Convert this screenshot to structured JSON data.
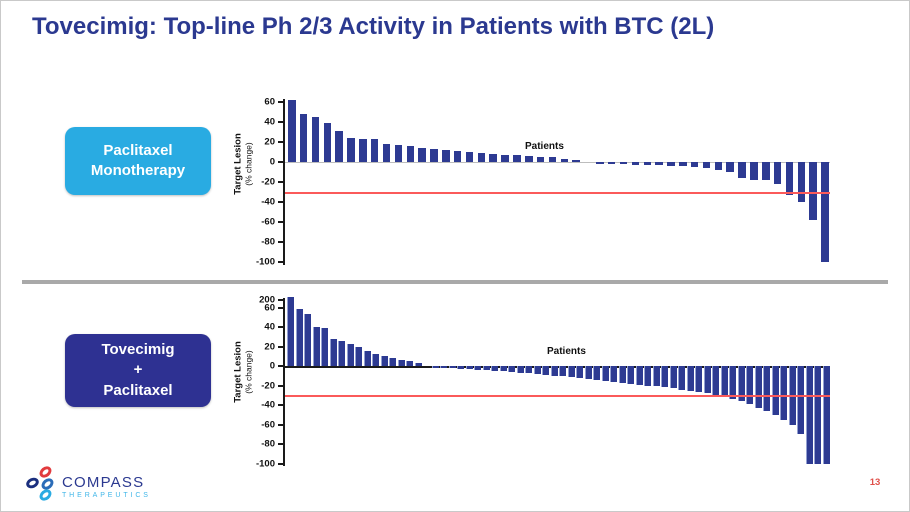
{
  "slide": {
    "title": "Tovecimig: Top-line Ph 2/3 Activity in Patients with BTC (2L)",
    "page_number": "13"
  },
  "arms": [
    {
      "label_lines": [
        "Paclitaxel",
        "Monotherapy"
      ],
      "box_color": "#29abe2"
    },
    {
      "label_lines": [
        "Tovecimig",
        "+",
        "Paclitaxel"
      ],
      "box_color": "#2e3192"
    }
  ],
  "logo": {
    "name": "COMPASS",
    "subname": "THERAPEUTICS"
  },
  "colors": {
    "title_blue": "#2b3990",
    "bar_navy": "#2d3a92",
    "reference_red": "#fb5a5a",
    "divider_gray": "#a9a9a9"
  },
  "chart_data": [
    {
      "type": "bar",
      "subtype": "waterfall",
      "arm": "Paclitaxel Monotherapy",
      "xlabel": "Patients",
      "ylabel_bold": "Target Lesion",
      "ylabel_sub": "(% change)",
      "ylim": [
        -100,
        60
      ],
      "yticks": [
        60,
        40,
        20,
        0,
        -20,
        -40,
        -60,
        -80,
        -100
      ],
      "reference_line": -30,
      "grid": false,
      "values": [
        62,
        48,
        45,
        39,
        31,
        24,
        23,
        23,
        18,
        17,
        16,
        14,
        13,
        12,
        11,
        10,
        9,
        8,
        7,
        7,
        6,
        5,
        5,
        3,
        2,
        0,
        -1,
        -2,
        -2,
        -3,
        -3,
        -3,
        -4,
        -4,
        -5,
        -6,
        -8,
        -10,
        -16,
        -18,
        -18,
        -22,
        -33,
        -40,
        -58,
        -100
      ]
    },
    {
      "type": "bar",
      "subtype": "waterfall",
      "arm": "Tovecimig + Paclitaxel",
      "xlabel": "Patients",
      "ylabel_bold": "Target Lesion",
      "ylabel_sub": "(% change)",
      "ylim": [
        -100,
        200
      ],
      "yticks": [
        200,
        60,
        40,
        20,
        0,
        -20,
        -40,
        -60,
        -80,
        -100
      ],
      "axis_break_above": 60,
      "reference_line": -30,
      "grid": false,
      "values": [
        200,
        58,
        53,
        40,
        39,
        28,
        26,
        23,
        20,
        15,
        12,
        10,
        8,
        6,
        5,
        3,
        0,
        -1,
        -2,
        -2,
        -3,
        -3,
        -4,
        -4,
        -5,
        -5,
        -6,
        -7,
        -7,
        -8,
        -9,
        -10,
        -10,
        -11,
        -12,
        -13,
        -14,
        -15,
        -16,
        -17,
        -18,
        -19,
        -20,
        -21,
        -22,
        -23,
        -25,
        -26,
        -27,
        -28,
        -30,
        -32,
        -34,
        -36,
        -39,
        -43,
        -46,
        -50,
        -55,
        -60,
        -70,
        -100,
        -100,
        -100
      ]
    }
  ]
}
